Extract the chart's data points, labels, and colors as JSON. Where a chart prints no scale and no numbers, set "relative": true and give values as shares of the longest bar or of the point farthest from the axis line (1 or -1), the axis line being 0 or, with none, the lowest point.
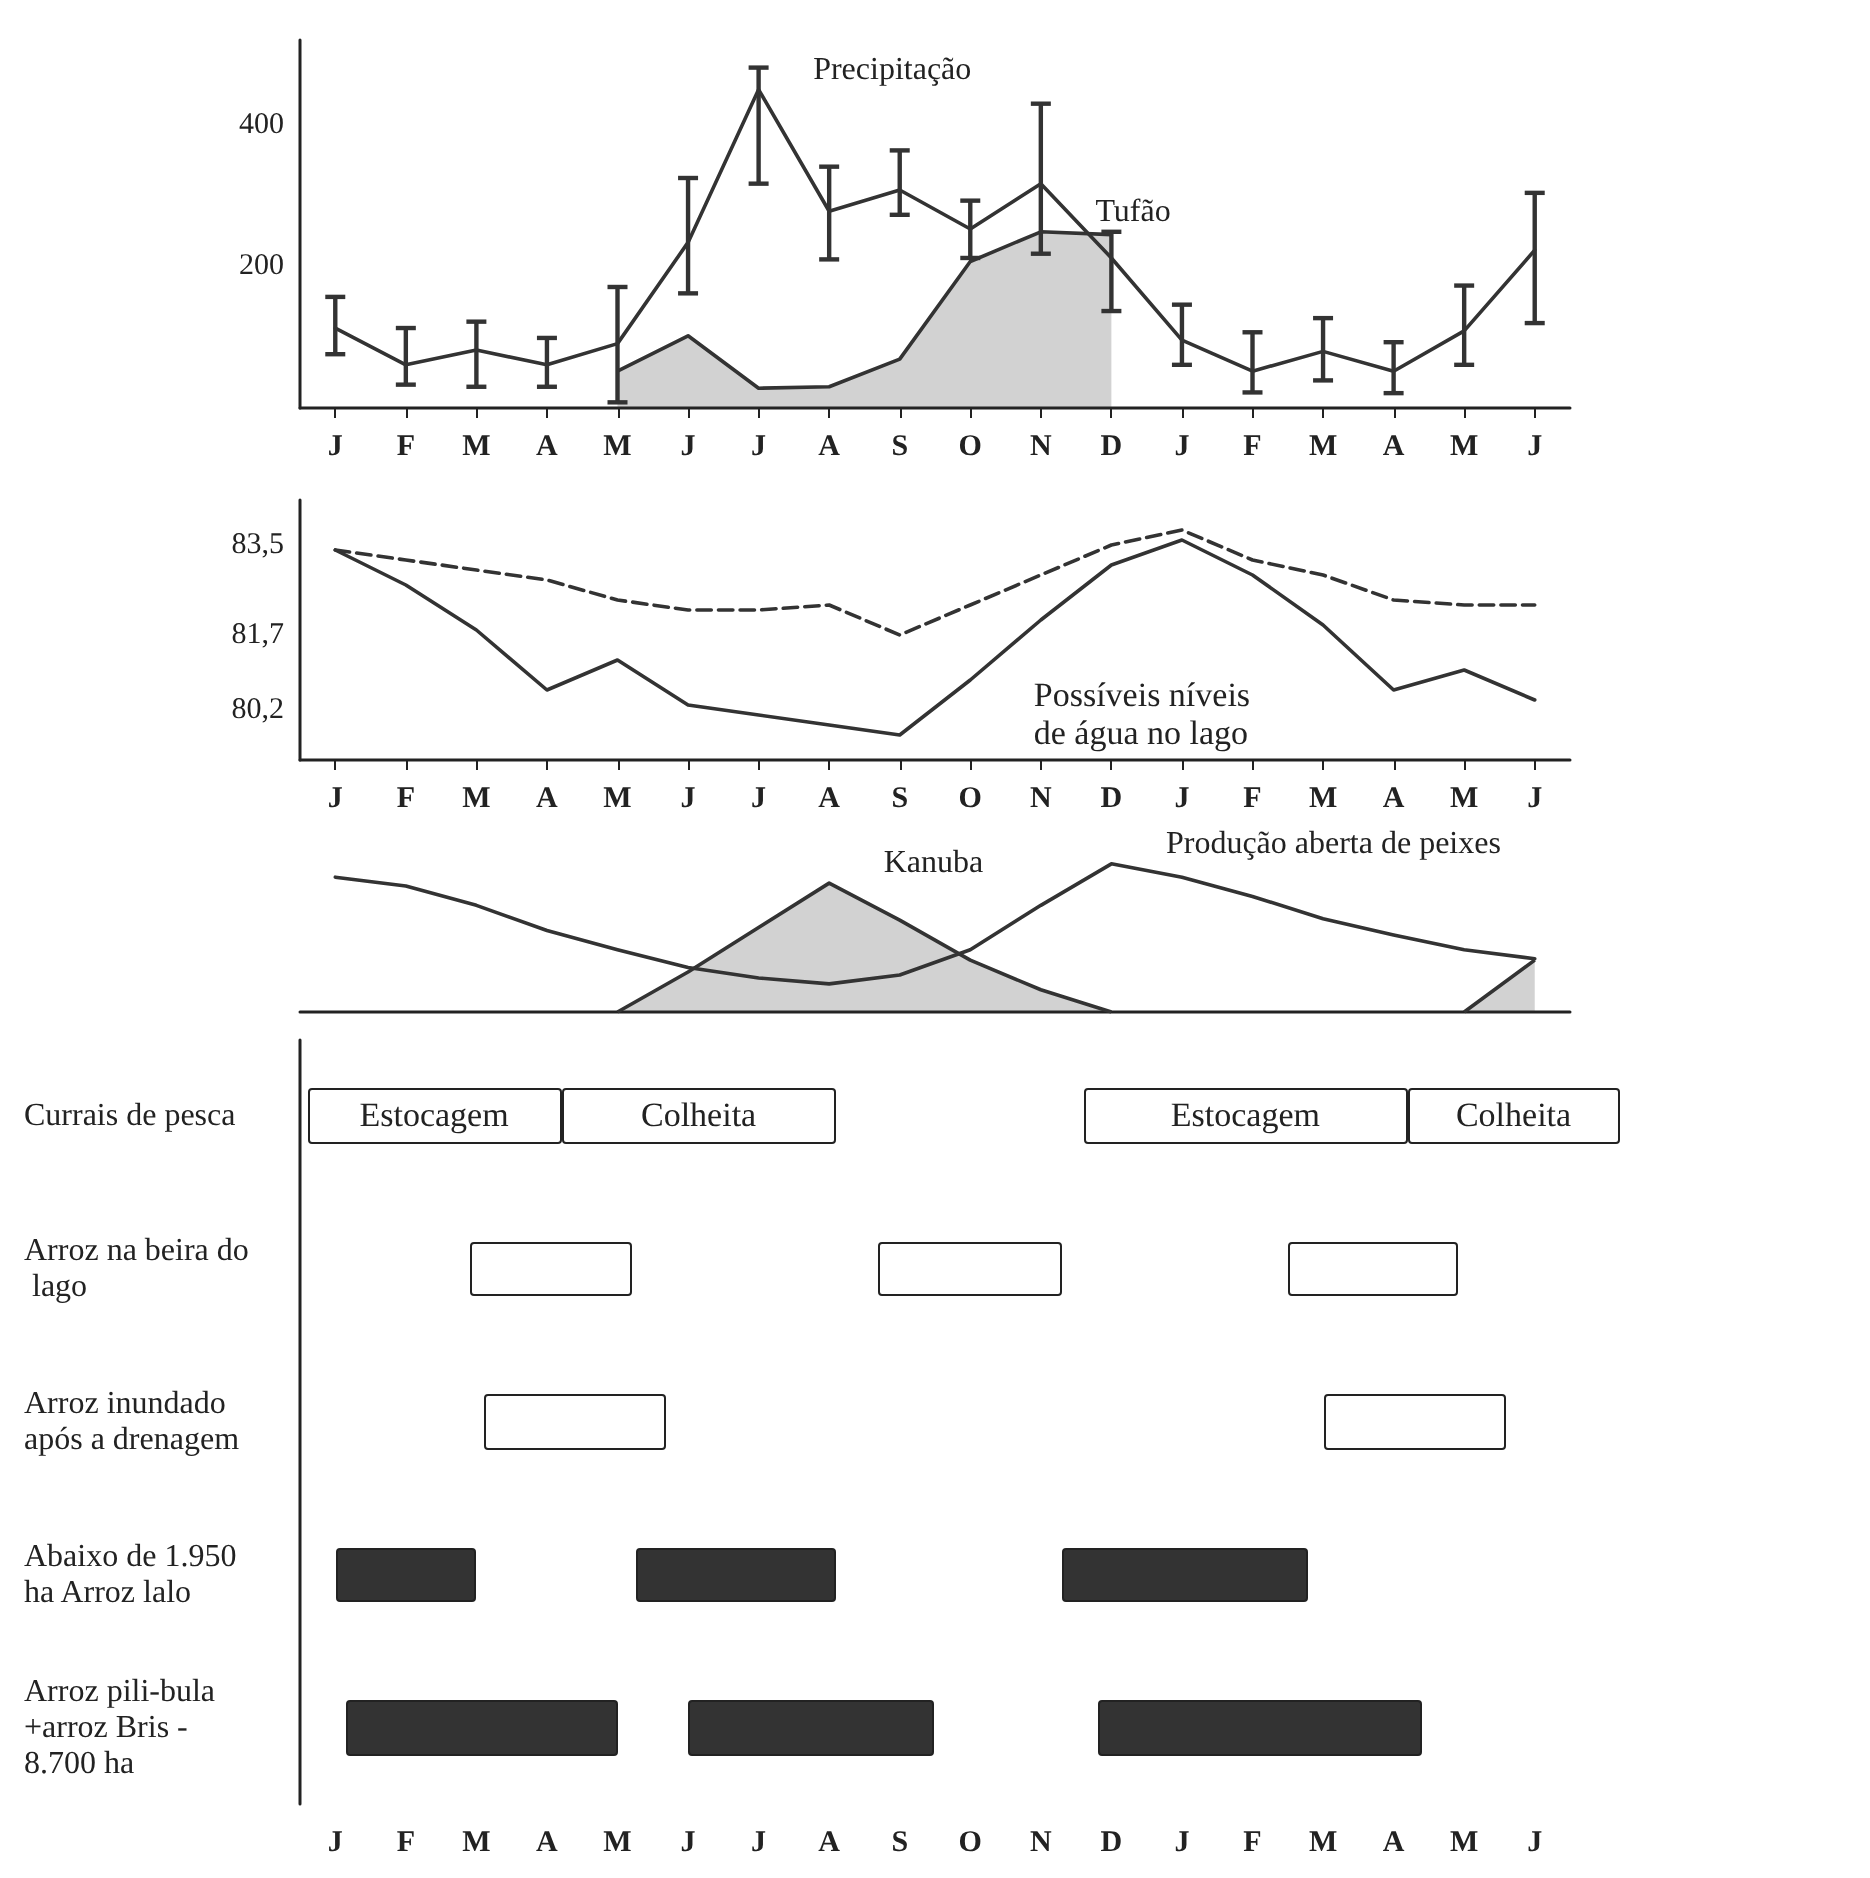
{
  "chart_data": [
    {
      "type": "line",
      "categories": [
        "J",
        "F",
        "M",
        "A",
        "M",
        "J",
        "J",
        "A",
        "S",
        "O",
        "N",
        "D",
        "J",
        "F",
        "M",
        "A",
        "M",
        "J"
      ],
      "ylim": [
        0,
        520
      ],
      "yticks": [
        200,
        400
      ],
      "marker": "none",
      "series": [
        {
          "name": "Precipitação",
          "color": "#333333",
          "values": [
            113,
            61,
            82,
            61,
            91,
            234,
            450,
            278,
            308,
            253,
            317,
            212,
            96,
            52,
            80,
            52,
            109,
            223
          ],
          "errors": [
            [
              76,
              157
            ],
            [
              33,
              113
            ],
            [
              30,
              122
            ],
            [
              30,
              99
            ],
            [
              8,
              171
            ],
            [
              162,
              325
            ],
            [
              317,
              481
            ],
            [
              210,
              341
            ],
            [
              273,
              364
            ],
            [
              212,
              293
            ],
            [
              218,
              430
            ],
            [
              137,
              249
            ],
            [
              61,
              146
            ],
            [
              22,
              107
            ],
            [
              39,
              127
            ],
            [
              21,
              93
            ],
            [
              61,
              173
            ],
            [
              120,
              304
            ]
          ]
        },
        {
          "name": "Tufão",
          "type": "area",
          "color": "#333333",
          "values": [
            null,
            null,
            null,
            null,
            52,
            102,
            28,
            30,
            69,
            207,
            249,
            245,
            null,
            null,
            null,
            null,
            null,
            null
          ]
        }
      ]
    },
    {
      "type": "line",
      "categories": [
        "J",
        "F",
        "M",
        "A",
        "M",
        "J",
        "J",
        "A",
        "S",
        "O",
        "N",
        "D",
        "J",
        "F",
        "M",
        "A",
        "M",
        "J"
      ],
      "ylim": [
        79.2,
        84.4
      ],
      "yticks": [
        {
          "value": 80.2,
          "label": "80,2"
        },
        {
          "value": 81.7,
          "label": "81,7"
        },
        {
          "value": 83.5,
          "label": "83,5"
        }
      ],
      "marker": "none",
      "annotations": [
        "Possíveis níveis de água no lago"
      ],
      "series": [
        {
          "color": "#333333",
          "values": [
            83.4,
            82.7,
            81.8,
            80.6,
            81.2,
            80.3,
            80.1,
            79.9,
            79.7,
            80.8,
            82.0,
            83.1,
            83.6,
            82.9,
            81.9,
            80.6,
            81.0,
            80.4
          ]
        },
        {
          "color": "#333333",
          "line_style": "dashed",
          "values": [
            83.4,
            83.2,
            83.0,
            82.8,
            82.4,
            82.2,
            82.2,
            82.3,
            81.7,
            82.3,
            82.9,
            83.5,
            83.8,
            83.2,
            82.9,
            82.4,
            82.3,
            82.3
          ]
        }
      ]
    },
    {
      "type": "line",
      "relative": true,
      "tick_labels": false,
      "categories": [
        null,
        null,
        null,
        null,
        null,
        null,
        null,
        null,
        null,
        null,
        null,
        null,
        null,
        null,
        null,
        null,
        null,
        null
      ],
      "marker": "none",
      "series": [
        {
          "name": "Produção aberta de peixes",
          "color": "#333333",
          "values": [
            0.91,
            0.85,
            0.72,
            0.55,
            0.42,
            0.3,
            0.23,
            0.19,
            0.25,
            0.42,
            0.72,
            1.0,
            0.91,
            0.78,
            0.63,
            0.52,
            0.42,
            0.36
          ]
        },
        {
          "name": "Kanuba",
          "type": "area",
          "color": "#333333",
          "values": [
            null,
            null,
            null,
            null,
            0,
            0.27,
            0.57,
            0.87,
            0.62,
            0.35,
            0.15,
            0,
            null,
            null,
            null,
            null,
            0,
            0.35
          ]
        }
      ]
    },
    {
      "type": "other",
      "y_categories": [
        "Currais de pesca",
        "Arroz na beira do lago",
        "Arroz inundado após a drenagem",
        "Abaixo de 1.950 ha Arroz lalo",
        "Arroz pili-bula +arroz Bris - 8.700 ha"
      ],
      "annotations": [
        "Estocagem",
        "Colheita",
        "Estocagem",
        "Colheita",
        "J",
        "F",
        "M",
        "A",
        "M",
        "J",
        "J",
        "A",
        "S",
        "O",
        "N",
        "D",
        "J",
        "F",
        "M",
        "A",
        "M",
        "J"
      ]
    }
  ]
}
